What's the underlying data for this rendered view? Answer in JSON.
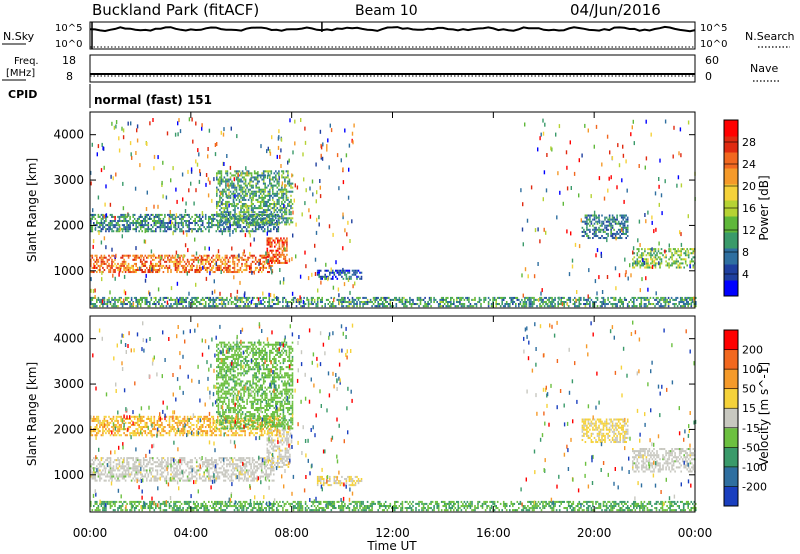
{
  "header": {
    "site": "Buckland Park (fitACF)",
    "beam": "Beam 10",
    "date": "04/Jun/2016"
  },
  "status_panels": {
    "nsky_label": "N.Sky",
    "noise_ticks": [
      "10^5",
      "10^0"
    ],
    "nsearch_label": "N.Search",
    "freq_label": "Freq.",
    "freq_unit": "[MHz]",
    "freq_ticks": [
      "18",
      "8"
    ],
    "nave_ticks": [
      "60",
      "0"
    ],
    "nave_label": "Nave",
    "cpid_label": "CPID",
    "cpid_text": "normal (fast) 151"
  },
  "x_axis": {
    "label": "Time UT",
    "ticks": [
      "00:00",
      "04:00",
      "08:00",
      "12:00",
      "16:00",
      "20:00",
      "00:00"
    ]
  },
  "power_panel": {
    "ylabel": "Slant Range [km]",
    "yticks": [
      "4000",
      "3000",
      "2000",
      "1000"
    ],
    "colorbar_label": "Power [dB]",
    "colorbar_ticks": [
      "28",
      "24",
      "20",
      "16",
      "12",
      "8",
      "4"
    ],
    "colors": [
      "#0000ff",
      "#1f3f9f",
      "#2f6fa0",
      "#3a9a6a",
      "#5fb83a",
      "#b6d334",
      "#f5d23a",
      "#f59a2a",
      "#f2681f",
      "#e02a10",
      "#ff0000"
    ]
  },
  "velocity_panel": {
    "ylabel": "Slant Range [km]",
    "yticks": [
      "4000",
      "3000",
      "2000",
      "1000"
    ],
    "colorbar_label": "Velocity [m s^-1]",
    "colorbar_ticks": [
      "200",
      "100",
      "50",
      "15",
      "-15",
      "-50",
      "-100",
      "-200"
    ],
    "colors": [
      "#1a3fbf",
      "#2f6fa0",
      "#3a9a6a",
      "#6cc040",
      "#c8c8c0",
      "#f5d23a",
      "#f59a2a",
      "#f2681f",
      "#ff0000"
    ]
  },
  "chart_data": [
    {
      "type": "heatmap",
      "title": "Power [dB]",
      "xlabel": "Time UT",
      "ylabel": "Slant Range [km]",
      "x_range_hours": [
        0,
        24
      ],
      "ylim": [
        180,
        4500
      ],
      "colorbar_range": [
        0,
        32
      ],
      "regions": [
        {
          "t": [
            0.0,
            7.2
          ],
          "range": [
            950,
            1350
          ],
          "value": 24
        },
        {
          "t": [
            7.0,
            7.8
          ],
          "range": [
            1150,
            1700
          ],
          "value": 26
        },
        {
          "t": [
            0.0,
            7.5
          ],
          "range": [
            1850,
            2250
          ],
          "value": 9
        },
        {
          "t": [
            5.0,
            8.0
          ],
          "range": [
            2000,
            3200
          ],
          "value": 11
        },
        {
          "t": [
            9.0,
            10.8
          ],
          "range": [
            800,
            1000
          ],
          "value": 6
        },
        {
          "t": [
            21.5,
            24.0
          ],
          "range": [
            1050,
            1500
          ],
          "value": 14
        },
        {
          "t": [
            19.5,
            21.3
          ],
          "range": [
            1700,
            2200
          ],
          "value": 8
        },
        {
          "t": [
            0.0,
            24.0
          ],
          "range": [
            200,
            400
          ],
          "value": 10
        }
      ]
    },
    {
      "type": "heatmap",
      "title": "Velocity [m s^-1]",
      "xlabel": "Time UT",
      "ylabel": "Slant Range [km]",
      "x_range_hours": [
        0,
        24
      ],
      "ylim": [
        180,
        4500
      ],
      "colorbar_range": [
        -250,
        250
      ],
      "regions": [
        {
          "t": [
            0.0,
            7.3
          ],
          "range": [
            850,
            1350
          ],
          "value": 0
        },
        {
          "t": [
            7.0,
            8.0
          ],
          "range": [
            1150,
            2000
          ],
          "value": 5
        },
        {
          "t": [
            0.0,
            7.5
          ],
          "range": [
            1850,
            2300
          ],
          "value": 80
        },
        {
          "t": [
            5.0,
            8.0
          ],
          "range": [
            2000,
            3900
          ],
          "value": -60
        },
        {
          "t": [
            9.0,
            10.8
          ],
          "range": [
            750,
            950
          ],
          "value": 30
        },
        {
          "t": [
            21.5,
            24.0
          ],
          "range": [
            1050,
            1550
          ],
          "value": 0
        },
        {
          "t": [
            19.5,
            21.3
          ],
          "range": [
            1700,
            2200
          ],
          "value": 40
        },
        {
          "t": [
            0.0,
            24.0
          ],
          "range": [
            200,
            400
          ],
          "value": -80
        }
      ]
    }
  ]
}
